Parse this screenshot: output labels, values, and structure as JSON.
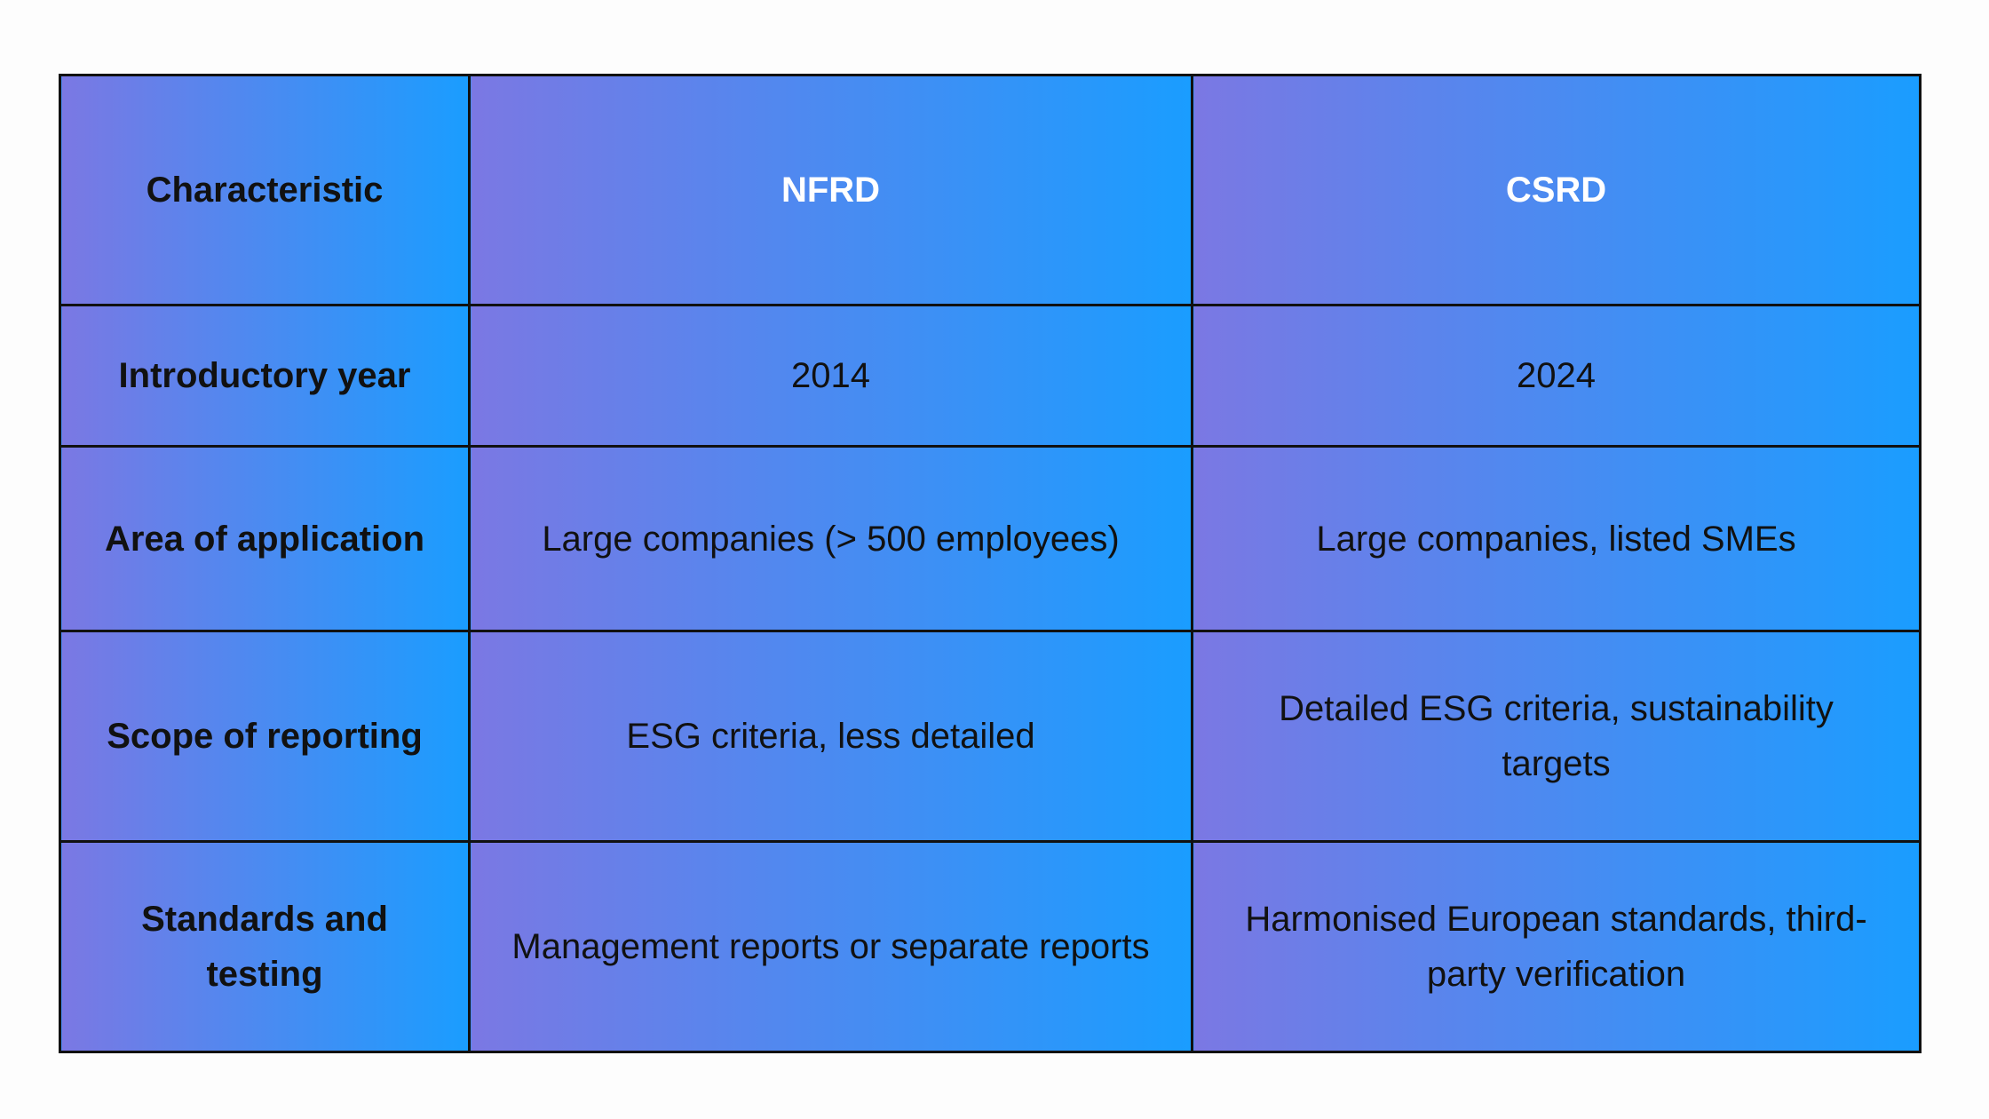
{
  "table": {
    "header": [
      "Characteristic",
      "NFRD",
      "CSRD"
    ],
    "rows": [
      [
        "Introductory year",
        "2014",
        "2024"
      ],
      [
        "Area of application",
        "Large companies (> 500 employees)",
        "Large companies, listed SMEs"
      ],
      [
        "Scope of reporting",
        "ESG criteria, less detailed",
        "Detailed ESG criteria, sustainability targets"
      ],
      [
        "Standards and testing",
        "Management reports or separate reports",
        "Harmonised European standards, third-party verification"
      ]
    ]
  }
}
